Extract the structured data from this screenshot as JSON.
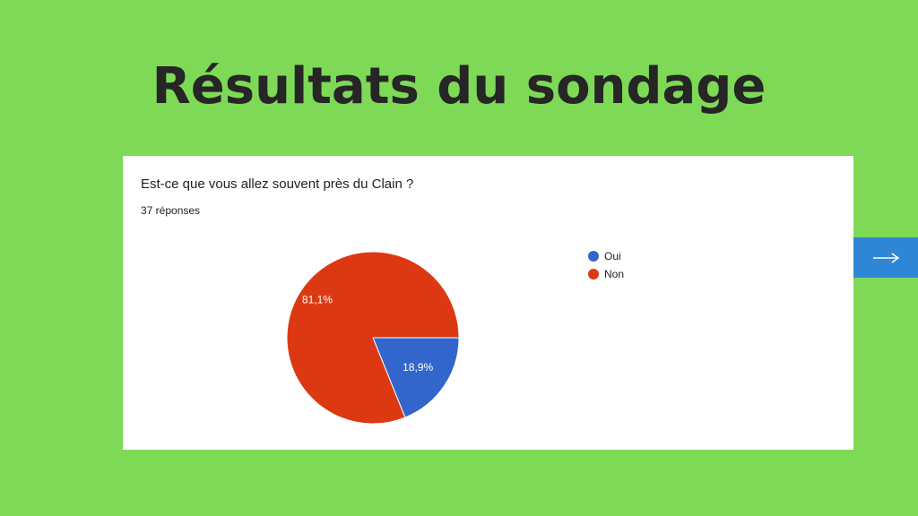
{
  "heading": "Résultats du sondage",
  "chart_data": {
    "type": "pie",
    "title": "Est-ce que vous allez souvent près du Clain ?",
    "subtitle": "37 réponses",
    "categories": [
      "Oui",
      "Non"
    ],
    "values": [
      18.9,
      81.1
    ],
    "value_labels": [
      "18,9%",
      "81,1%"
    ],
    "colors": [
      "#3366cc",
      "#dc3912"
    ],
    "legend": "right"
  }
}
